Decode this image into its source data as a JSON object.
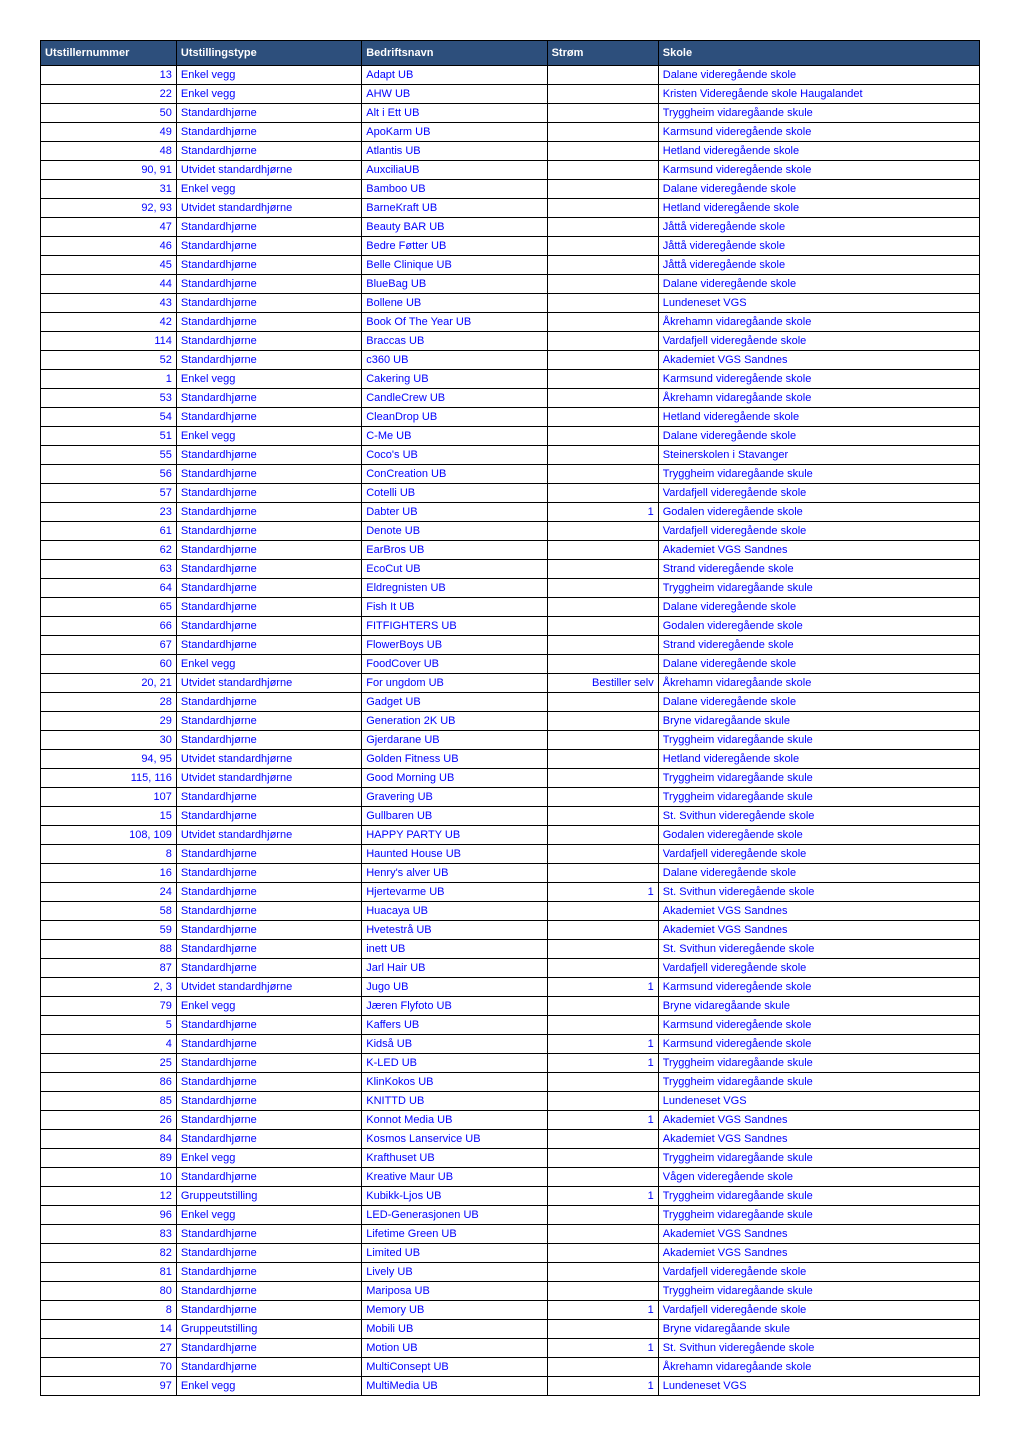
{
  "columns": [
    "Utstillernummer",
    "Utstillingstype",
    "Bedriftsnavn",
    "Strøm",
    "Skole"
  ],
  "colors": {
    "header_bg": "#2d4f7c",
    "header_text": "#ffffff",
    "cell_text": "#0000ff",
    "border": "#000000",
    "background": "#ffffff"
  },
  "rows": [
    [
      "13",
      "Enkel vegg",
      "Adapt UB",
      "",
      "Dalane videregående skole"
    ],
    [
      "22",
      "Enkel vegg",
      "AHW UB",
      "",
      "Kristen Videregående skole Haugalandet"
    ],
    [
      "50",
      "Standardhjørne",
      "Alt i Ett UB",
      "",
      "Tryggheim vidaregåande skule"
    ],
    [
      "49",
      "Standardhjørne",
      "ApoKarm UB",
      "",
      "Karmsund videregående skole"
    ],
    [
      "48",
      "Standardhjørne",
      "Atlantis UB",
      "",
      "Hetland videregående skole"
    ],
    [
      "90, 91",
      "Utvidet standardhjørne",
      "AuxciliaUB",
      "",
      "Karmsund videregående skole"
    ],
    [
      "31",
      "Enkel vegg",
      "Bamboo UB",
      "",
      "Dalane videregående skole"
    ],
    [
      "92, 93",
      "Utvidet standardhjørne",
      "BarneKraft UB",
      "",
      "Hetland videregående skole"
    ],
    [
      "47",
      "Standardhjørne",
      "Beauty BAR UB",
      "",
      "Jåttå videregående skole"
    ],
    [
      "46",
      "Standardhjørne",
      "Bedre Føtter UB",
      "",
      "Jåttå videregående skole"
    ],
    [
      "45",
      "Standardhjørne",
      "Belle Clinique UB",
      "",
      "Jåttå videregående skole"
    ],
    [
      "44",
      "Standardhjørne",
      "BlueBag UB",
      "",
      "Dalane videregående skole"
    ],
    [
      "43",
      "Standardhjørne",
      "Bollene UB",
      "",
      "Lundeneset VGS"
    ],
    [
      "42",
      "Standardhjørne",
      "Book Of The Year UB",
      "",
      "Åkrehamn vidaregåande skole"
    ],
    [
      "114",
      "Standardhjørne",
      "Braccas UB",
      "",
      "Vardafjell videregående skole"
    ],
    [
      "52",
      "Standardhjørne",
      "c360 UB",
      "",
      "Akademiet VGS Sandnes"
    ],
    [
      "1",
      "Enkel vegg",
      "Cakering UB",
      "",
      "Karmsund videregående skole"
    ],
    [
      "53",
      "Standardhjørne",
      "CandleCrew UB",
      "",
      "Åkrehamn vidaregåande skole"
    ],
    [
      "54",
      "Standardhjørne",
      "CleanDrop UB",
      "",
      "Hetland videregående skole"
    ],
    [
      "51",
      "Enkel vegg",
      "C-Me UB",
      "",
      "Dalane videregående skole"
    ],
    [
      "55",
      "Standardhjørne",
      "Coco's UB",
      "",
      "Steinerskolen i Stavanger"
    ],
    [
      "56",
      "Standardhjørne",
      "ConCreation UB",
      "",
      "Tryggheim vidaregåande skule"
    ],
    [
      "57",
      "Standardhjørne",
      "Cotelli UB",
      "",
      "Vardafjell videregående skole"
    ],
    [
      "23",
      "Standardhjørne",
      "Dabter UB",
      "1",
      "Godalen videregående skole"
    ],
    [
      "61",
      "Standardhjørne",
      "Denote UB",
      "",
      "Vardafjell videregående skole"
    ],
    [
      "62",
      "Standardhjørne",
      "EarBros UB",
      "",
      "Akademiet VGS Sandnes"
    ],
    [
      "63",
      "Standardhjørne",
      "EcoCut UB",
      "",
      "Strand videregående skole"
    ],
    [
      "64",
      "Standardhjørne",
      "Eldregnisten UB",
      "",
      "Tryggheim vidaregåande skule"
    ],
    [
      "65",
      "Standardhjørne",
      "Fish It UB",
      "",
      "Dalane videregående skole"
    ],
    [
      "66",
      "Standardhjørne",
      "FITFIGHTERS UB",
      "",
      "Godalen videregående skole"
    ],
    [
      "67",
      "Standardhjørne",
      "FlowerBoys UB",
      "",
      "Strand videregående skole"
    ],
    [
      "60",
      "Enkel vegg",
      "FoodCover UB",
      "",
      "Dalane videregående skole"
    ],
    [
      "20, 21",
      "Utvidet standardhjørne",
      "For ungdom UB",
      "Bestiller selv",
      "Åkrehamn vidaregåande skole"
    ],
    [
      "28",
      "Standardhjørne",
      "Gadget UB",
      "",
      "Dalane videregående skole"
    ],
    [
      "29",
      "Standardhjørne",
      "Generation 2K UB",
      "",
      "Bryne vidaregåande skule"
    ],
    [
      "30",
      "Standardhjørne",
      "Gjerdarane UB",
      "",
      "Tryggheim vidaregåande skule"
    ],
    [
      "94, 95",
      "Utvidet standardhjørne",
      "Golden Fitness UB",
      "",
      "Hetland videregående skole"
    ],
    [
      "115, 116",
      "Utvidet standardhjørne",
      "Good Morning UB",
      "",
      "Tryggheim vidaregåande skule"
    ],
    [
      "107",
      "Standardhjørne",
      "Gravering UB",
      "",
      "Tryggheim vidaregåande skule"
    ],
    [
      "15",
      "Standardhjørne",
      "Gullbaren UB",
      "",
      "St. Svithun videregående skole"
    ],
    [
      "108, 109",
      "Utvidet standardhjørne",
      "HAPPY PARTY UB",
      "",
      "Godalen videregående skole"
    ],
    [
      "8",
      "Standardhjørne",
      "Haunted House UB",
      "",
      "Vardafjell videregående skole"
    ],
    [
      "16",
      "Standardhjørne",
      "Henry's alver UB",
      "",
      "Dalane videregående skole"
    ],
    [
      "24",
      "Standardhjørne",
      "Hjertevarme UB",
      "1",
      "St. Svithun videregående skole"
    ],
    [
      "58",
      "Standardhjørne",
      "Huacaya UB",
      "",
      "Akademiet VGS Sandnes"
    ],
    [
      "59",
      "Standardhjørne",
      "Hvetestrå UB",
      "",
      "Akademiet VGS Sandnes"
    ],
    [
      "88",
      "Standardhjørne",
      "inett UB",
      "",
      "St. Svithun videregående skole"
    ],
    [
      "87",
      "Standardhjørne",
      "Jarl Hair UB",
      "",
      "Vardafjell videregående skole"
    ],
    [
      "2, 3",
      "Utvidet standardhjørne",
      "Jugo UB",
      "1",
      "Karmsund videregående skole"
    ],
    [
      "79",
      "Enkel vegg",
      "Jæren Flyfoto UB",
      "",
      "Bryne vidaregåande skule"
    ],
    [
      "5",
      "Standardhjørne",
      "Kaffers UB",
      "",
      "Karmsund videregående skole"
    ],
    [
      "4",
      "Standardhjørne",
      "Kidså UB",
      "1",
      "Karmsund videregående skole"
    ],
    [
      "25",
      "Standardhjørne",
      "K-LED UB",
      "1",
      "Tryggheim vidaregåande skule"
    ],
    [
      "86",
      "Standardhjørne",
      "KlinKokos UB",
      "",
      "Tryggheim vidaregåande skule"
    ],
    [
      "85",
      "Standardhjørne",
      "KNITTD UB",
      "",
      "Lundeneset VGS"
    ],
    [
      "26",
      "Standardhjørne",
      "Konnot Media UB",
      "1",
      "Akademiet VGS Sandnes"
    ],
    [
      "84",
      "Standardhjørne",
      "Kosmos Lanservice UB",
      "",
      "Akademiet VGS Sandnes"
    ],
    [
      "89",
      "Enkel vegg",
      "Krafthuset UB",
      "",
      "Tryggheim vidaregåande skule"
    ],
    [
      "10",
      "Standardhjørne",
      "Kreative Maur UB",
      "",
      "Vågen videregående skole"
    ],
    [
      "12",
      "Gruppeutstilling",
      "Kubikk-Ljos UB",
      "1",
      "Tryggheim vidaregåande skule"
    ],
    [
      "96",
      "Enkel vegg",
      "LED-Generasjonen UB",
      "",
      "Tryggheim vidaregåande skule"
    ],
    [
      "83",
      "Standardhjørne",
      "Lifetime Green UB",
      "",
      "Akademiet VGS Sandnes"
    ],
    [
      "82",
      "Standardhjørne",
      "Limited UB",
      "",
      "Akademiet VGS Sandnes"
    ],
    [
      "81",
      "Standardhjørne",
      "Lively UB",
      "",
      "Vardafjell videregående skole"
    ],
    [
      "80",
      "Standardhjørne",
      "Mariposa UB",
      "",
      "Tryggheim vidaregåande skule"
    ],
    [
      "8",
      "Standardhjørne",
      "Memory UB",
      "1",
      "Vardafjell videregående skole"
    ],
    [
      "14",
      "Gruppeutstilling",
      "Mobili UB",
      "",
      "Bryne vidaregåande skule"
    ],
    [
      "27",
      "Standardhjørne",
      "Motion UB",
      "1",
      "St. Svithun videregående skole"
    ],
    [
      "70",
      "Standardhjørne",
      "MultiConsept UB",
      "",
      "Åkrehamn vidaregåande skole"
    ],
    [
      "97",
      "Enkel vegg",
      "MultiMedia UB",
      "1",
      "Lundeneset VGS"
    ]
  ]
}
